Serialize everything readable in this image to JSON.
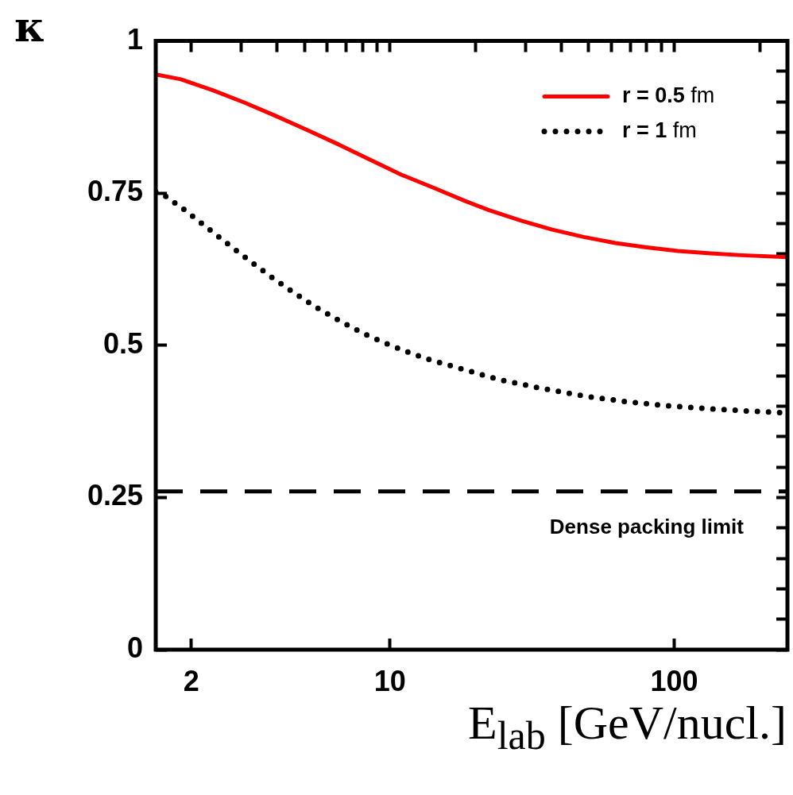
{
  "chart_data": {
    "type": "line",
    "xlabel": "E$_{lab}$ [GeV/nucl.]",
    "ylabel": "κ",
    "log": "x",
    "legend": "top right",
    "marker": "none",
    "grid": false,
    "xlim": [
      1.5,
      250
    ],
    "ylim": [
      0,
      1
    ],
    "xticks": [
      2,
      {
        "value": 3,
        "label": null
      },
      {
        "value": 4,
        "label": null
      },
      {
        "value": 5,
        "label": null
      },
      {
        "value": 6,
        "label": null
      },
      {
        "value": 7,
        "label": null
      },
      {
        "value": 8,
        "label": null
      },
      {
        "value": 9,
        "label": null
      },
      10,
      {
        "value": 20,
        "label": null
      },
      {
        "value": 30,
        "label": null
      },
      {
        "value": 40,
        "label": null
      },
      {
        "value": 50,
        "label": null
      },
      {
        "value": 60,
        "label": null
      },
      {
        "value": 70,
        "label": null
      },
      {
        "value": 80,
        "label": null
      },
      {
        "value": 90,
        "label": null
      },
      100,
      {
        "value": 200,
        "label": null
      }
    ],
    "yticks": [
      0,
      {
        "value": 0.05,
        "label": null
      },
      {
        "value": 0.1,
        "label": null
      },
      {
        "value": 0.15,
        "label": null
      },
      {
        "value": 0.2,
        "label": null
      },
      {
        "value": 0.25,
        "label": "0.25"
      },
      {
        "value": 0.3,
        "label": null
      },
      {
        "value": 0.35,
        "label": null
      },
      {
        "value": 0.4,
        "label": null
      },
      {
        "value": 0.45,
        "label": null
      },
      {
        "value": 0.5,
        "label": "0.5"
      },
      {
        "value": 0.55,
        "label": null
      },
      {
        "value": 0.6,
        "label": null
      },
      {
        "value": 0.65,
        "label": null
      },
      {
        "value": 0.7,
        "label": null
      },
      {
        "value": 0.75,
        "label": "0.75"
      },
      {
        "value": 0.8,
        "label": null
      },
      {
        "value": 0.85,
        "label": null
      },
      {
        "value": 0.9,
        "label": null
      },
      {
        "value": 0.95,
        "label": null
      },
      1
    ],
    "series": [
      {
        "name": "r = 0.5 fm",
        "color": "#ff0000",
        "line_style": "solid",
        "x": [
          1.5,
          1.84,
          2.38,
          3.07,
          3.96,
          5.1,
          6.6,
          8.5,
          11,
          14.2,
          18.4,
          22.3,
          28.8,
          37.2,
          48,
          62,
          80,
          103,
          134,
          173,
          250
        ],
        "values": [
          0.945,
          0.937,
          0.919,
          0.899,
          0.877,
          0.854,
          0.83,
          0.805,
          0.78,
          0.759,
          0.737,
          0.722,
          0.705,
          0.69,
          0.678,
          0.668,
          0.661,
          0.655,
          0.651,
          0.648,
          0.645
        ]
      },
      {
        "name": "r = 1 fm",
        "color": "#000000",
        "line_style": "dotted",
        "x": [
          1.5,
          1.58,
          1.89,
          2.25,
          2.7,
          3.23,
          3.86,
          4.64,
          5.57,
          6.67,
          8.1,
          9.8,
          11.7,
          14.1,
          18.6,
          24,
          34.4,
          49,
          69,
          98,
          140,
          183,
          250
        ],
        "values": [
          0.752,
          0.749,
          0.723,
          0.695,
          0.666,
          0.638,
          0.611,
          0.585,
          0.561,
          0.54,
          0.519,
          0.502,
          0.488,
          0.475,
          0.459,
          0.444,
          0.429,
          0.416,
          0.407,
          0.4,
          0.395,
          0.392,
          0.389
        ]
      }
    ],
    "ref_lines": [
      {
        "axis": "y",
        "value": 0.26,
        "label": "Dense packing limit",
        "color": "#000000",
        "line_style": "dashed"
      }
    ]
  }
}
